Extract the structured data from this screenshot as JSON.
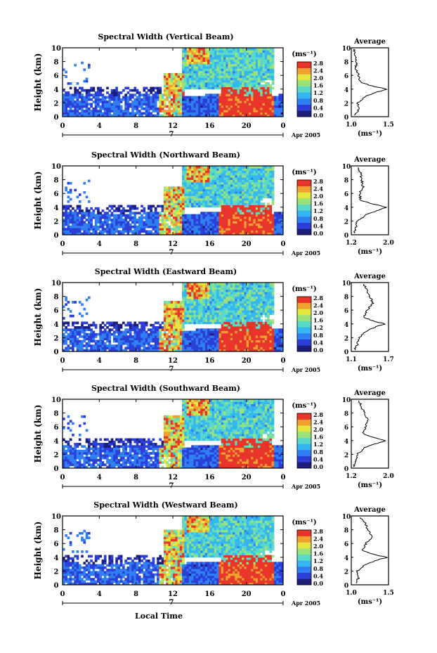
{
  "figure": {
    "x_axis_label": "Local Time",
    "date_label": "Apr 2005",
    "day_label": "7",
    "colorbar_unit": "(ms⁻¹)",
    "colorbar_ticks": [
      "0.0",
      "0.4",
      "0.8",
      "1.2",
      "1.6",
      "2.0",
      "2.4",
      "2.8"
    ],
    "average_title": "Average",
    "average_unit": "(ms⁻¹)",
    "height_label": "Height (km)",
    "x_ticks": [
      "0",
      "4",
      "8",
      "12",
      "16",
      "20",
      "0"
    ],
    "y_ticks": [
      "0",
      "2",
      "4",
      "6",
      "8",
      "10"
    ],
    "colormap": [
      "#1c1f7a",
      "#2b3fd8",
      "#2f7ff2",
      "#34b6f0",
      "#5ad8c8",
      "#9be27a",
      "#e6e640",
      "#f0a030",
      "#e8352a"
    ]
  },
  "chart_data": [
    {
      "type": "heatmap",
      "title": "Spectral Width (Vertical Beam)",
      "xlabel": "Local Time",
      "ylabel": "Height (km)",
      "xlim": [
        0,
        24
      ],
      "ylim": [
        0,
        10
      ],
      "clim": [
        0.0,
        2.8
      ],
      "average": {
        "title": "Average",
        "xlim": [
          1.0,
          1.5
        ],
        "xticks": [
          "1.0",
          "1.5"
        ],
        "xlabel": "(ms⁻¹)",
        "profile": [
          [
            0.2,
            1.05
          ],
          [
            1,
            1.1
          ],
          [
            2,
            1.08
          ],
          [
            3,
            1.2
          ],
          [
            3.6,
            1.35
          ],
          [
            4,
            1.48
          ],
          [
            4.4,
            1.3
          ],
          [
            5,
            1.12
          ],
          [
            6,
            1.1
          ],
          [
            7,
            1.06
          ],
          [
            8,
            1.07
          ],
          [
            9,
            1.05
          ],
          [
            9.8,
            1.04
          ]
        ]
      }
    },
    {
      "type": "heatmap",
      "title": "Spectral Width (Northward Beam)",
      "xlabel": "Local Time",
      "ylabel": "Height (km)",
      "xlim": [
        0,
        24
      ],
      "ylim": [
        0,
        10
      ],
      "clim": [
        0.0,
        2.8
      ],
      "average": {
        "title": "Average",
        "xlim": [
          1.2,
          2.0
        ],
        "xticks": [
          "1.2",
          "2.0"
        ],
        "xlabel": "(ms⁻¹)",
        "profile": [
          [
            0.2,
            1.25
          ],
          [
            1,
            1.3
          ],
          [
            2,
            1.32
          ],
          [
            3,
            1.55
          ],
          [
            3.6,
            1.8
          ],
          [
            4,
            1.95
          ],
          [
            4.4,
            1.7
          ],
          [
            5,
            1.4
          ],
          [
            6,
            1.38
          ],
          [
            7,
            1.45
          ],
          [
            8,
            1.42
          ],
          [
            9,
            1.4
          ],
          [
            9.8,
            1.35
          ]
        ]
      }
    },
    {
      "type": "heatmap",
      "title": "Spectral Width (Eastward Beam)",
      "xlabel": "Local Time",
      "ylabel": "Height (km)",
      "xlim": [
        0,
        24
      ],
      "ylim": [
        0,
        10
      ],
      "clim": [
        0.0,
        2.8
      ],
      "average": {
        "title": "Average",
        "xlim": [
          1.1,
          1.7
        ],
        "xticks": [
          "1.1",
          "1.7"
        ],
        "xlabel": "(ms⁻¹)",
        "profile": [
          [
            0.2,
            1.15
          ],
          [
            1,
            1.2
          ],
          [
            2,
            1.22
          ],
          [
            3,
            1.35
          ],
          [
            3.6,
            1.5
          ],
          [
            4,
            1.65
          ],
          [
            4.4,
            1.45
          ],
          [
            5,
            1.3
          ],
          [
            6,
            1.35
          ],
          [
            7,
            1.45
          ],
          [
            8,
            1.4
          ],
          [
            9,
            1.35
          ],
          [
            9.8,
            1.3
          ]
        ]
      }
    },
    {
      "type": "heatmap",
      "title": "Spectral Width (Southward Beam)",
      "xlabel": "Local Time",
      "ylabel": "Height (km)",
      "xlim": [
        0,
        24
      ],
      "ylim": [
        0,
        10
      ],
      "clim": [
        0.0,
        2.8
      ],
      "average": {
        "title": "Average",
        "xlim": [
          1.2,
          2.0
        ],
        "xticks": [
          "1.2",
          "2.0"
        ],
        "xlabel": "(ms⁻¹)",
        "profile": [
          [
            0.2,
            1.25
          ],
          [
            1,
            1.3
          ],
          [
            2,
            1.32
          ],
          [
            3,
            1.5
          ],
          [
            3.6,
            1.75
          ],
          [
            4,
            1.95
          ],
          [
            4.4,
            1.7
          ],
          [
            5,
            1.45
          ],
          [
            6,
            1.5
          ],
          [
            7,
            1.55
          ],
          [
            8,
            1.48
          ],
          [
            9,
            1.42
          ],
          [
            9.8,
            1.35
          ]
        ]
      }
    },
    {
      "type": "heatmap",
      "title": "Spectral Width (Westward Beam)",
      "xlabel": "Local Time",
      "ylabel": "Height (km)",
      "xlim": [
        0,
        24
      ],
      "ylim": [
        0,
        10
      ],
      "clim": [
        0.0,
        2.8
      ],
      "average": {
        "title": "Average",
        "xlim": [
          1.0,
          1.5
        ],
        "xticks": [
          "1.0",
          "1.5"
        ],
        "xlabel": "(ms⁻¹)",
        "profile": [
          [
            0.2,
            1.05
          ],
          [
            1,
            1.1
          ],
          [
            2,
            1.08
          ],
          [
            3,
            1.2
          ],
          [
            3.6,
            1.35
          ],
          [
            4,
            1.48
          ],
          [
            4.4,
            1.3
          ],
          [
            5,
            1.15
          ],
          [
            6,
            1.2
          ],
          [
            7,
            1.28
          ],
          [
            8,
            1.22
          ],
          [
            9,
            1.18
          ],
          [
            9.8,
            1.12
          ]
        ]
      }
    }
  ]
}
